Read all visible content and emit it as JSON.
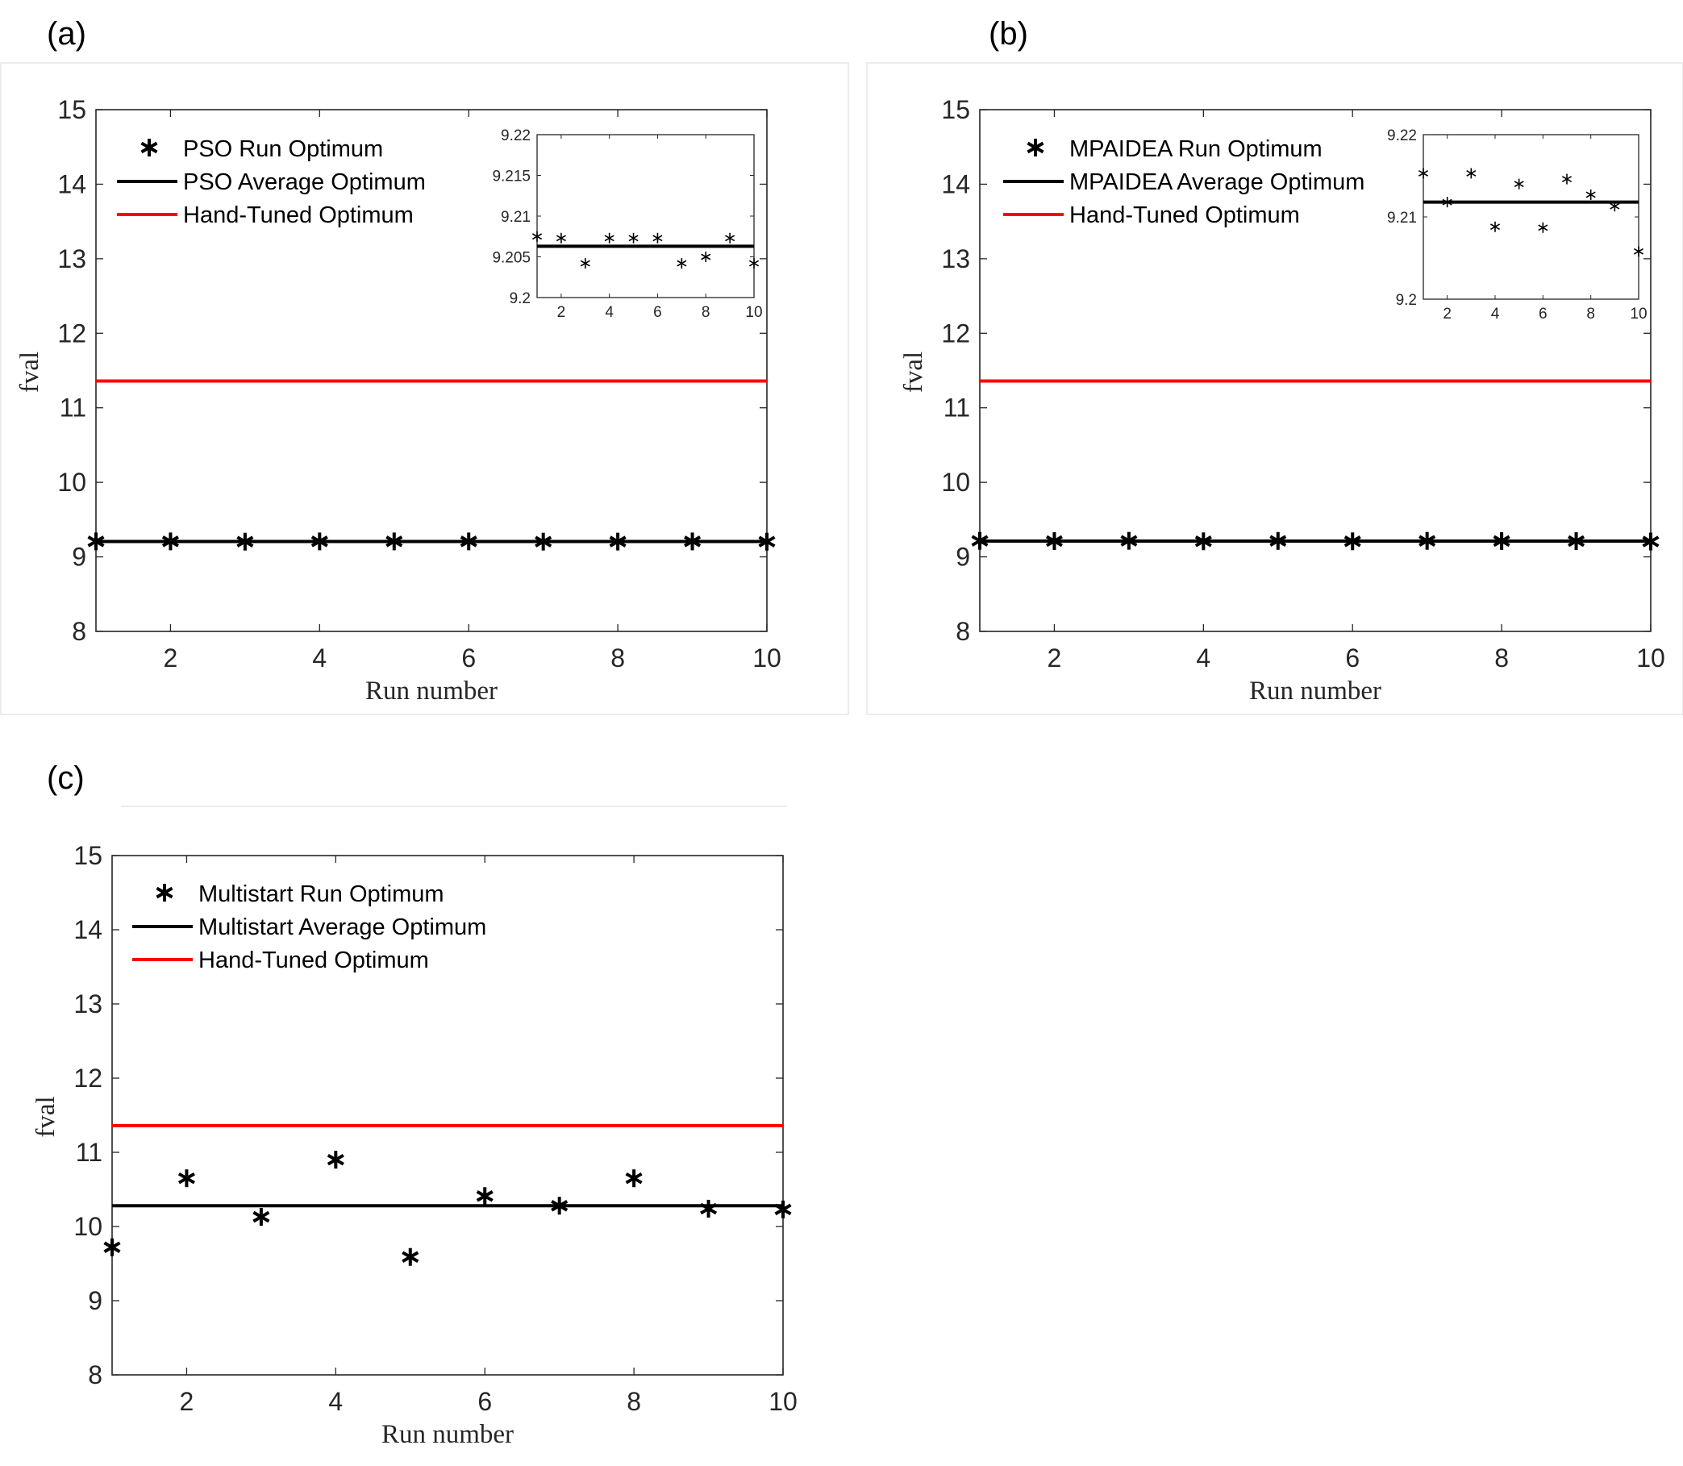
{
  "chart_data": [
    {
      "panel_label": "(a)",
      "type": "scatter",
      "xlabel": "Run number",
      "ylabel": "fval",
      "xlim": [
        1,
        10
      ],
      "ylim": [
        8,
        15
      ],
      "xticks": [
        "2",
        "4",
        "6",
        "8",
        "10"
      ],
      "yticks": [
        "8",
        "9",
        "10",
        "11",
        "12",
        "13",
        "14",
        "15"
      ],
      "x": [
        1,
        2,
        3,
        4,
        5,
        6,
        7,
        8,
        9,
        10
      ],
      "series": [
        {
          "name": "PSO Run Optimum",
          "kind": "marker",
          "color": "#000000",
          "values": [
            9.2075,
            9.2073,
            9.2042,
            9.2073,
            9.2073,
            9.2073,
            9.2042,
            9.205,
            9.2073,
            9.2042
          ]
        },
        {
          "name": "PSO Average Optimum",
          "kind": "hline",
          "color": "#000000",
          "value": 9.2063
        },
        {
          "name": "Hand-Tuned Optimum",
          "kind": "hline",
          "color": "#ff0000",
          "value": 11.36
        }
      ],
      "inset": {
        "xlim": [
          1,
          10
        ],
        "ylim": [
          9.2,
          9.22
        ],
        "xticks": [
          "2",
          "4",
          "6",
          "8",
          "10"
        ],
        "yticks": [
          "9.2",
          "9.205",
          "9.21",
          "9.215",
          "9.22"
        ]
      }
    },
    {
      "panel_label": "(b)",
      "type": "scatter",
      "xlabel": "Run number",
      "ylabel": "fval",
      "xlim": [
        1,
        10
      ],
      "ylim": [
        8,
        15
      ],
      "xticks": [
        "2",
        "4",
        "6",
        "8",
        "10"
      ],
      "yticks": [
        "8",
        "9",
        "10",
        "11",
        "12",
        "13",
        "14",
        "15"
      ],
      "x": [
        1,
        2,
        3,
        4,
        5,
        6,
        7,
        8,
        9,
        10
      ],
      "series": [
        {
          "name": "MPAIDEA Run Optimum",
          "kind": "marker",
          "color": "#000000",
          "values": [
            9.2153,
            9.2118,
            9.2153,
            9.2088,
            9.214,
            9.2087,
            9.2146,
            9.2127,
            9.2113,
            9.2058
          ]
        },
        {
          "name": "MPAIDEA Average Optimum",
          "kind": "hline",
          "color": "#000000",
          "value": 9.2118
        },
        {
          "name": "Hand-Tuned Optimum",
          "kind": "hline",
          "color": "#ff0000",
          "value": 11.36
        }
      ],
      "inset": {
        "xlim": [
          1,
          10
        ],
        "ylim": [
          9.2,
          9.22
        ],
        "xticks": [
          "2",
          "4",
          "6",
          "8",
          "10"
        ],
        "yticks": [
          "9.2",
          "9.21",
          "9.22"
        ]
      }
    },
    {
      "panel_label": "(c)",
      "type": "scatter",
      "xlabel": "Run number",
      "ylabel": "fval",
      "xlim": [
        1,
        10
      ],
      "ylim": [
        8,
        15
      ],
      "xticks": [
        "2",
        "4",
        "6",
        "8",
        "10"
      ],
      "yticks": [
        "8",
        "9",
        "10",
        "11",
        "12",
        "13",
        "14",
        "15"
      ],
      "x": [
        1,
        2,
        3,
        4,
        5,
        6,
        7,
        8,
        9,
        10
      ],
      "series": [
        {
          "name": "Multistart Run Optimum",
          "kind": "marker",
          "color": "#000000",
          "values": [
            9.72,
            10.65,
            10.13,
            10.9,
            9.59,
            10.41,
            10.28,
            10.65,
            10.24,
            10.23
          ]
        },
        {
          "name": "Multistart Average Optimum",
          "kind": "hline",
          "color": "#000000",
          "value": 10.28
        },
        {
          "name": "Hand-Tuned Optimum",
          "kind": "hline",
          "color": "#ff0000",
          "value": 11.36
        }
      ]
    }
  ]
}
